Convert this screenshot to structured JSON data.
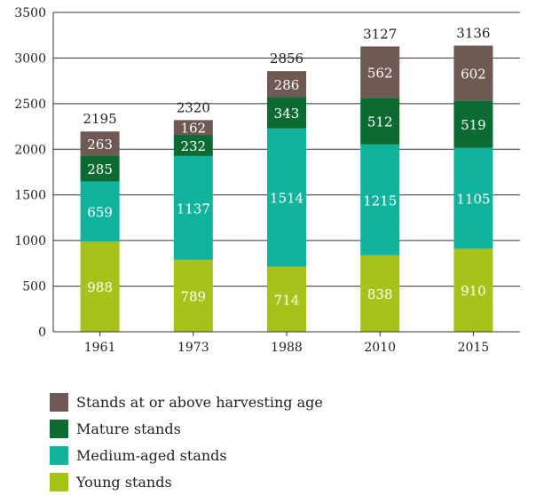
{
  "chart_data": {
    "type": "bar",
    "stacked": true,
    "categories": [
      "1961",
      "1973",
      "1988",
      "2010",
      "2015"
    ],
    "series": [
      {
        "name": "Young stands",
        "color": "#a8c21a",
        "values": [
          988,
          789,
          714,
          838,
          910
        ]
      },
      {
        "name": "Medium-aged stands",
        "color": "#12b39c",
        "values": [
          659,
          1137,
          1514,
          1215,
          1105
        ]
      },
      {
        "name": "Mature stands",
        "color": "#0b6b33",
        "values": [
          285,
          232,
          343,
          512,
          519
        ]
      },
      {
        "name": "Stands at or above harvesting age",
        "color": "#6e5a52",
        "values": [
          263,
          162,
          286,
          562,
          602
        ]
      }
    ],
    "totals": [
      "2195",
      "2320",
      "2856",
      "3127",
      "3136"
    ],
    "yticks": [
      0,
      500,
      1000,
      1500,
      2000,
      2500,
      3000,
      3500
    ],
    "ylim": [
      0,
      3500
    ],
    "grid": true,
    "legend_position": "bottom-left",
    "title": "",
    "xlabel": "",
    "ylabel": ""
  },
  "legend": [
    {
      "label": "Stands at or above harvesting age",
      "color": "#6e5a52"
    },
    {
      "label": "Mature stands",
      "color": "#0b6b33"
    },
    {
      "label": "Medium-aged stands",
      "color": "#12b39c"
    },
    {
      "label": "Young stands",
      "color": "#a8c21a"
    }
  ]
}
